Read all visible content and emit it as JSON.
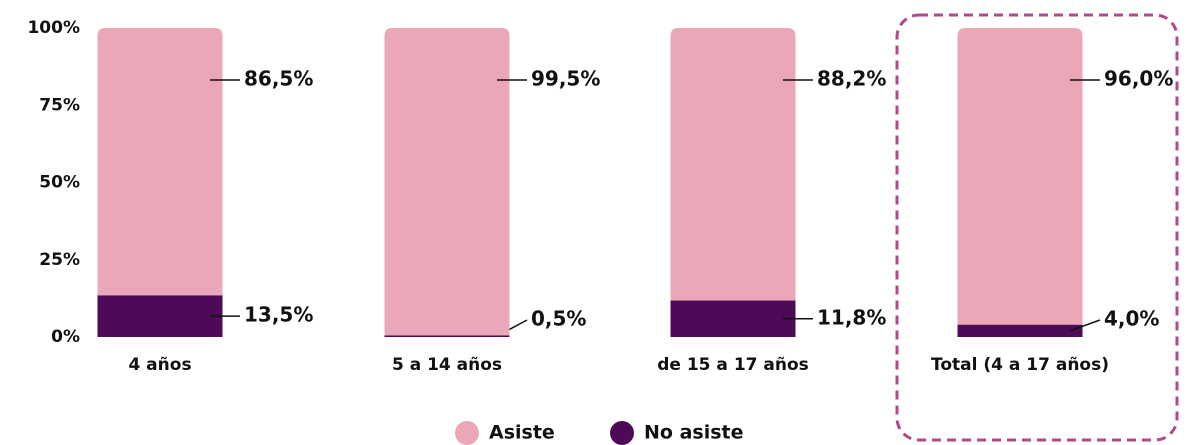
{
  "chart_data": {
    "type": "stacked_bar",
    "categories": [
      "4 años",
      "5 a 14 años",
      "de 15 a 17 años",
      "Total (4 a 17 años)"
    ],
    "series": [
      {
        "name": "No asiste",
        "color": "#4d0a57",
        "values": [
          13.5,
          0.5,
          11.8,
          4.0
        ],
        "value_labels": [
          "13,5%",
          "0,5%",
          "11,8%",
          "4,0%"
        ]
      },
      {
        "name": "Asiste",
        "color": "#eaa7b8",
        "values": [
          86.5,
          99.5,
          88.2,
          96.0
        ],
        "value_labels": [
          "86,5%",
          "99,5%",
          "88,2%",
          "96,0%"
        ]
      }
    ],
    "ylim": [
      0,
      100
    ],
    "yticks": [
      {
        "value": 0,
        "label": "0%"
      },
      {
        "value": 25,
        "label": "25%"
      },
      {
        "value": 50,
        "label": "50%"
      },
      {
        "value": 75,
        "label": "75%"
      },
      {
        "value": 100,
        "label": "100%"
      }
    ],
    "legend": "bottom"
  }
}
